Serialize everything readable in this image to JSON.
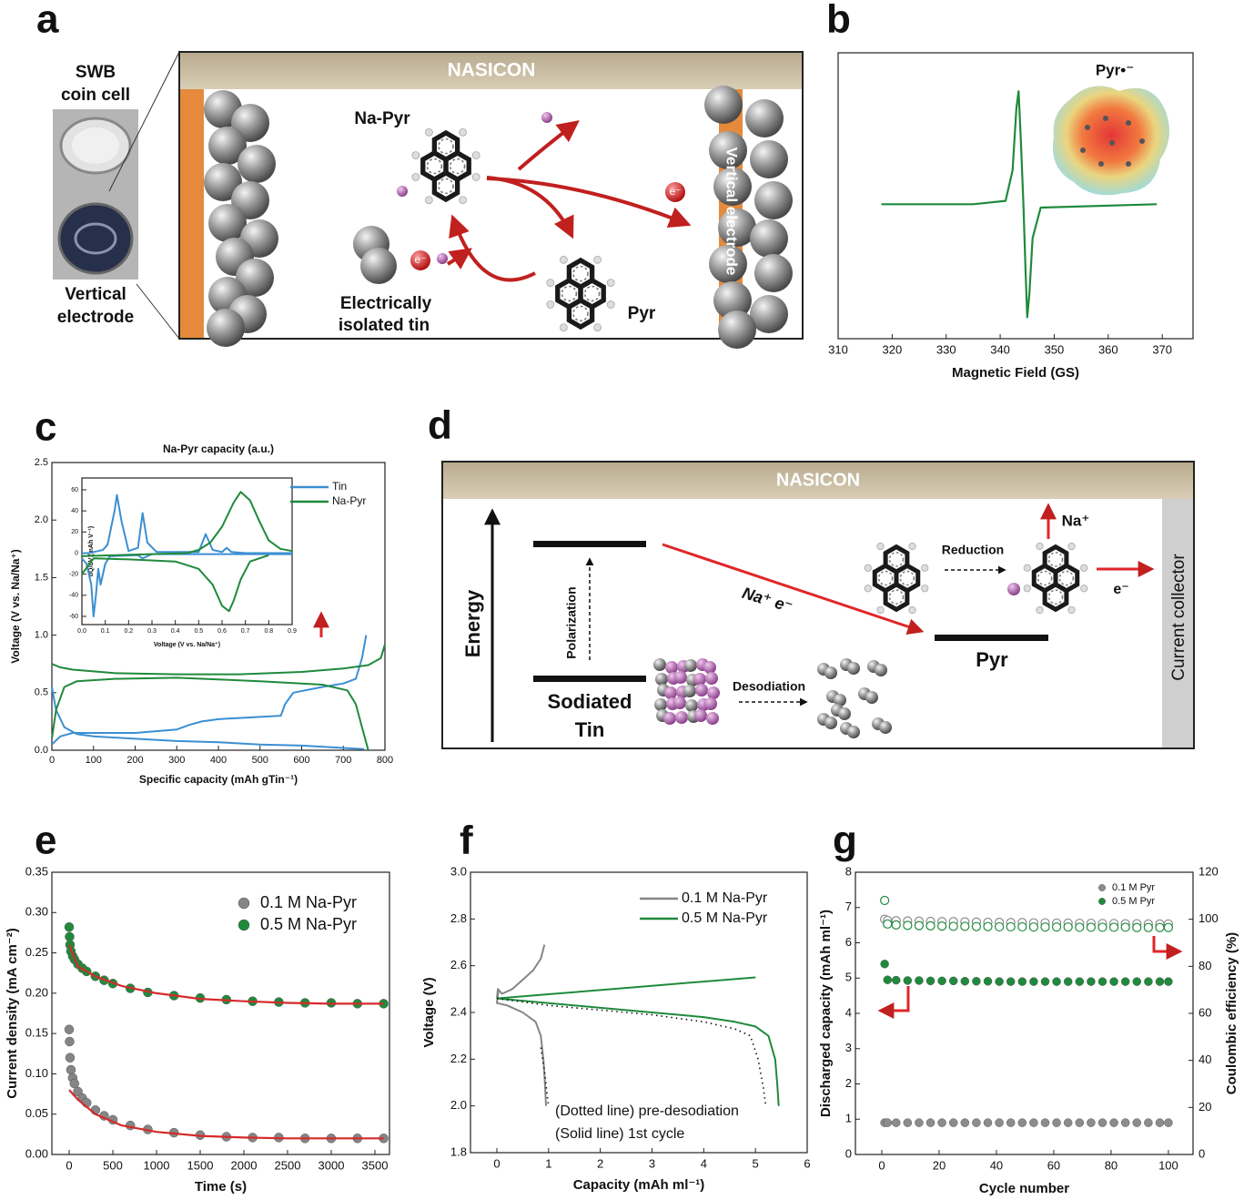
{
  "panel_labels": [
    "a",
    "b",
    "c",
    "d",
    "e",
    "f",
    "g"
  ],
  "diagram_a": {
    "cell_title": [
      "SWB",
      "coin cell"
    ],
    "cell_caption": [
      "Vertical",
      "electrode"
    ],
    "nasicon": "NASICON",
    "na_pyr": "Na-Pyr",
    "tin": [
      "Electrically",
      "isolated tin"
    ],
    "pyr": "Pyr",
    "vertical_electrode": "Vertical electrode",
    "electron": "e⁻"
  },
  "diagram_d": {
    "nasicon": "NASICON",
    "energy": "Energy",
    "polarization": "Polarization",
    "sodiated": [
      "Sodiated",
      "Tin"
    ],
    "desodiation": "Desodiation",
    "transfer": "Na⁺  e⁻",
    "reduction": "Reduction",
    "na_plus": "Na⁺",
    "electron": "e⁻",
    "pyr": "Pyr",
    "current_collector": "Current collector"
  },
  "chart_data": [
    {
      "type": "line",
      "annotation": "Pyr•⁻",
      "x_label": "Magnetic Field (GS)",
      "xlim": [
        310,
        375.7
      ],
      "xticks": [
        310,
        320,
        330,
        340,
        350,
        360,
        370
      ],
      "ylim": [
        -1.19,
        1.34
      ],
      "series": [
        {
          "color": "#1f8a3c",
          "x": [
            318,
            335,
            341,
            342.3,
            343,
            343.4,
            343.8,
            344.3,
            344.7,
            345,
            345.4,
            346,
            347.5,
            369
          ],
          "values": [
            0,
            0,
            0.03,
            0.3,
            0.85,
            1,
            0.6,
            0,
            -0.6,
            -1,
            -0.8,
            -0.3,
            -0.03,
            0
          ]
        }
      ]
    },
    {
      "type": "line",
      "top_label": "Na-Pyr capacity (a.u.)",
      "x_label": "Specific capacity (mAh gTin⁻¹)",
      "y_label": "Voltage (V vs. Na/Na⁺)",
      "xlim": [
        0,
        800
      ],
      "xticks": [
        0,
        100,
        200,
        300,
        400,
        500,
        600,
        700,
        800
      ],
      "ylim": [
        0,
        2.5
      ],
      "yticks": [
        {
          "value": 0,
          "label": "0.0"
        },
        0.5,
        {
          "value": 1,
          "label": "1.0"
        },
        1.5,
        {
          "value": 2,
          "label": "2.0"
        },
        2.5
      ],
      "series": [
        {
          "color": "#3b8fd2",
          "x": [
            0,
            10,
            30,
            60,
            100,
            200,
            300,
            400,
            500,
            600,
            700,
            750,
            null,
            0,
            20,
            50,
            100,
            200,
            300,
            330,
            360,
            400,
            450,
            550,
            560,
            580,
            650,
            700,
            730,
            745,
            750,
            755
          ],
          "values": [
            0.55,
            0.35,
            0.2,
            0.14,
            0.12,
            0.1,
            0.08,
            0.07,
            0.05,
            0.04,
            0.02,
            0.01,
            null,
            0.05,
            0.12,
            0.15,
            0.15,
            0.15,
            0.18,
            0.22,
            0.25,
            0.27,
            0.28,
            0.3,
            0.4,
            0.5,
            0.55,
            0.58,
            0.62,
            0.8,
            0.9,
            1.0
          ]
        },
        {
          "color": "#1f8a3c",
          "x": [
            0,
            20,
            50,
            150,
            300,
            450,
            600,
            700,
            760,
            790,
            800,
            null,
            0,
            10,
            30,
            60,
            150,
            300,
            500,
            650,
            710,
            730,
            745,
            760
          ],
          "values": [
            0.75,
            0.72,
            0.7,
            0.67,
            0.66,
            0.66,
            0.68,
            0.71,
            0.74,
            0.8,
            0.92,
            null,
            0.1,
            0.35,
            0.55,
            0.6,
            0.62,
            0.63,
            0.6,
            0.57,
            0.52,
            0.4,
            0.2,
            0.0
          ]
        }
      ]
    },
    {
      "type": "line",
      "x_label": "Voltage (V vs. Na/Na⁺)",
      "y_label": "dQ/dV (mAh V⁻¹)",
      "legend": "right",
      "xlim": [
        0,
        0.9
      ],
      "xticks": [
        {
          "value": 0,
          "label": "0.0"
        },
        0.1,
        0.2,
        0.3,
        0.4,
        0.5,
        0.6,
        0.7,
        0.8,
        0.9
      ],
      "ylim": [
        -67.8,
        71.2
      ],
      "yticks": [
        -60,
        -40,
        -20,
        0,
        20,
        40,
        60
      ],
      "series": [
        {
          "name": "Tin",
          "color": "#3b8fd2",
          "x": [
            0,
            0.03,
            0.05,
            0.07,
            0.09,
            0.11,
            0.14,
            0.15,
            0.17,
            0.2,
            0.24,
            0.26,
            0.28,
            0.32,
            0.5,
            0.53,
            0.56,
            0.6,
            0.62,
            0.64,
            0.7,
            0.9,
            null,
            0.9,
            0.3,
            0.28,
            0.26,
            0.24,
            0.12,
            0.1,
            0.08,
            0.07,
            0.06,
            0.05,
            0.04,
            0.02,
            0.0
          ],
          "values": [
            0,
            0,
            1,
            2,
            3,
            8,
            40,
            55,
            30,
            2,
            5,
            38,
            10,
            1,
            1,
            18,
            3,
            1,
            5,
            1,
            0,
            0,
            null,
            -1,
            -1,
            -3,
            -5,
            -2,
            -3,
            -10,
            -30,
            -15,
            -40,
            -60,
            -30,
            -10,
            -5
          ]
        },
        {
          "name": "Na-Pyr",
          "color": "#1f8a3c",
          "x": [
            0.0,
            0.45,
            0.5,
            0.55,
            0.6,
            0.65,
            0.68,
            0.72,
            0.76,
            0.8,
            0.85,
            0.9,
            null,
            0.8,
            0.72,
            0.68,
            0.65,
            0.63,
            0.6,
            0.56,
            0.5,
            0.4,
            0.2,
            0.05,
            0.0
          ],
          "values": [
            -3,
            0,
            3,
            10,
            25,
            48,
            58,
            50,
            30,
            12,
            4,
            2,
            null,
            -2,
            -8,
            -25,
            -45,
            -55,
            -50,
            -30,
            -15,
            -8,
            -6,
            -5,
            -20
          ]
        }
      ]
    },
    {
      "type": "scatter",
      "x_label": "Time (s)",
      "y_label": "Current density (mA cm⁻²)",
      "legend": "upper right",
      "xlim": [
        -198,
        3667
      ],
      "xticks": [
        0,
        500,
        1000,
        1500,
        2000,
        2500,
        3000,
        3500
      ],
      "ylim": [
        0,
        0.35
      ],
      "yticks": [
        {
          "value": 0,
          "label": "0.00"
        },
        0.05,
        {
          "value": 0.1,
          "label": "0.10"
        },
        0.15,
        {
          "value": 0.2,
          "label": "0.20"
        },
        0.25,
        {
          "value": 0.3,
          "label": "0.30"
        },
        0.35
      ],
      "series": [
        {
          "name": "0.1 M Na-Pyr",
          "color": "#858585",
          "x": [
            0,
            5,
            10,
            20,
            40,
            60,
            100,
            150,
            200,
            300,
            400,
            500,
            700,
            900,
            1200,
            1500,
            1800,
            2100,
            2400,
            2700,
            3000,
            3300,
            3600
          ],
          "values": [
            0.155,
            0.14,
            0.12,
            0.105,
            0.095,
            0.088,
            0.078,
            0.07,
            0.064,
            0.055,
            0.048,
            0.043,
            0.036,
            0.031,
            0.027,
            0.024,
            0.022,
            0.021,
            0.021,
            0.02,
            0.02,
            0.02,
            0.02
          ]
        },
        {
          "name": "0.5 M Na-Pyr",
          "color": "#1f8a3c",
          "x": [
            0,
            5,
            10,
            20,
            40,
            60,
            100,
            150,
            200,
            300,
            400,
            500,
            700,
            900,
            1200,
            1500,
            1800,
            2100,
            2400,
            2700,
            3000,
            3300,
            3600
          ],
          "values": [
            0.282,
            0.27,
            0.26,
            0.252,
            0.246,
            0.242,
            0.236,
            0.231,
            0.227,
            0.221,
            0.216,
            0.212,
            0.206,
            0.201,
            0.197,
            0.194,
            0.192,
            0.19,
            0.189,
            0.188,
            0.188,
            0.187,
            0.187
          ]
        }
      ],
      "fits": [
        {
          "color": "#d62a2a",
          "x": [
            0,
            100,
            300,
            600,
            1000,
            1500,
            2000,
            2500,
            3000,
            3600
          ],
          "values": [
            0.08,
            0.068,
            0.05,
            0.036,
            0.028,
            0.023,
            0.021,
            0.02,
            0.02,
            0.02
          ]
        },
        {
          "color": "#d62a2a",
          "x": [
            0,
            100,
            300,
            600,
            1000,
            1500,
            2000,
            2500,
            3000,
            3600
          ],
          "values": [
            0.26,
            0.233,
            0.221,
            0.209,
            0.2,
            0.193,
            0.19,
            0.188,
            0.187,
            0.187
          ]
        }
      ]
    },
    {
      "type": "line",
      "x_label": "Capacity (mAh ml⁻¹)",
      "y_label": "Voltage (V)",
      "legend": "upper right",
      "annotations": [
        "(Dotted line) pre-desodiation",
        "(Solid line) 1st cycle"
      ],
      "xlim": [
        -0.51,
        6
      ],
      "xticks": [
        0,
        1,
        2,
        3,
        4,
        5,
        6
      ],
      "ylim": [
        1.8,
        3.0
      ],
      "yticks": [
        1.8,
        {
          "value": 2,
          "label": "2.0"
        },
        2.2,
        2.4,
        2.6,
        2.8,
        {
          "value": 3,
          "label": "3.0"
        }
      ],
      "series": [
        {
          "name": "0.1 M Na-Pyr",
          "color": "#858585",
          "x": [
            0,
            0.02,
            0.1,
            0.3,
            0.5,
            0.7,
            0.85,
            0.92,
            null,
            0,
            0.03,
            0,
            0.2,
            0.5,
            0.75,
            0.85,
            0.9,
            0.93,
            0.95
          ],
          "values": [
            2.46,
            2.5,
            2.48,
            2.5,
            2.54,
            2.58,
            2.63,
            2.69,
            null,
            2.46,
            2.49,
            2.44,
            2.43,
            2.4,
            2.36,
            2.3,
            2.2,
            2.1,
            2.0
          ]
        },
        {
          "name": "0.5 M Na-Pyr",
          "color": "#1f8a3c",
          "x": [
            0,
            1,
            2,
            3,
            4,
            5,
            null,
            0,
            1,
            2,
            3,
            4,
            4.6,
            5,
            5.25,
            5.38,
            5.42,
            5.45
          ],
          "values": [
            2.46,
            2.478,
            2.496,
            2.514,
            2.532,
            2.55,
            null,
            2.46,
            2.44,
            2.42,
            2.4,
            2.38,
            2.36,
            2.34,
            2.3,
            2.2,
            2.1,
            2.0
          ]
        },
        {
          "color": "#111111",
          "dash": "dotted",
          "x": [
            0,
            1,
            2,
            3,
            4,
            4.6,
            4.9,
            5.05,
            5.15,
            5.2
          ],
          "values": [
            2.46,
            2.43,
            2.41,
            2.39,
            2.36,
            2.33,
            2.3,
            2.2,
            2.08,
            2.0
          ]
        },
        {
          "color": "#111111",
          "dash": "dotted",
          "x": [
            0.85,
            0.92,
            0.97,
            1.0
          ],
          "values": [
            2.25,
            2.15,
            2.05,
            2.0
          ]
        }
      ]
    },
    {
      "type": "scatter",
      "x_label": "Cycle number",
      "y_label": "Discharged capacity (mAh ml⁻¹)",
      "y2_label": "Coulombic efficiency (%)",
      "legend": "upper right",
      "xlim": [
        -9.2,
        108.6
      ],
      "xticks": [
        0,
        20,
        40,
        60,
        80,
        100
      ],
      "ylim": [
        0,
        8
      ],
      "yticks": [
        0,
        1,
        2,
        3,
        4,
        5,
        6,
        7,
        8
      ],
      "y2lim": [
        0,
        120
      ],
      "y2ticks": [
        0,
        20,
        40,
        60,
        80,
        100,
        120
      ],
      "series": [
        {
          "name": "0.1 M Pyr",
          "color": "#8c8c8c",
          "marker": "filled",
          "x": [
            1,
            2,
            5,
            9,
            13,
            17,
            21,
            25,
            29,
            33,
            37,
            41,
            45,
            49,
            53,
            57,
            61,
            65,
            69,
            73,
            77,
            81,
            85,
            89,
            93,
            97,
            100
          ],
          "values": [
            0.9,
            0.9,
            0.9,
            0.9,
            0.9,
            0.9,
            0.9,
            0.9,
            0.9,
            0.9,
            0.9,
            0.9,
            0.9,
            0.9,
            0.9,
            0.9,
            0.9,
            0.9,
            0.9,
            0.9,
            0.9,
            0.9,
            0.9,
            0.9,
            0.9,
            0.9,
            0.9
          ]
        },
        {
          "name": "0.5 M Pyr",
          "color": "#1f8a3c",
          "marker": "filled",
          "x": [
            1,
            2,
            5,
            9,
            13,
            17,
            21,
            25,
            29,
            33,
            37,
            41,
            45,
            49,
            53,
            57,
            61,
            65,
            69,
            73,
            77,
            81,
            85,
            89,
            93,
            97,
            100
          ],
          "values": [
            5.4,
            4.95,
            4.94,
            4.93,
            4.93,
            4.92,
            4.92,
            4.92,
            4.91,
            4.91,
            4.91,
            4.9,
            4.9,
            4.9,
            4.9,
            4.9,
            4.9,
            4.9,
            4.9,
            4.9,
            4.9,
            4.9,
            4.9,
            4.9,
            4.9,
            4.9,
            4.9
          ]
        },
        {
          "color": "#8c8c8c",
          "marker": "open",
          "axis": "y2",
          "x": [
            1,
            2,
            5,
            9,
            13,
            17,
            21,
            25,
            29,
            33,
            37,
            41,
            45,
            49,
            53,
            57,
            61,
            65,
            69,
            73,
            77,
            81,
            85,
            89,
            93,
            97,
            100
          ],
          "values": [
            100,
            99.5,
            99.4,
            99.3,
            99.2,
            99.1,
            99,
            99,
            98.9,
            98.8,
            98.7,
            98.7,
            98.6,
            98.6,
            98.5,
            98.5,
            98.4,
            98.4,
            98.3,
            98.3,
            98.2,
            98.2,
            98.1,
            98.1,
            98,
            98,
            98
          ]
        },
        {
          "color": "#1f8a3c",
          "marker": "open",
          "axis": "y2",
          "x": [
            1,
            2,
            5,
            9,
            13,
            17,
            21,
            25,
            29,
            33,
            37,
            41,
            45,
            49,
            53,
            57,
            61,
            65,
            69,
            73,
            77,
            81,
            85,
            89,
            93,
            97,
            100
          ],
          "values": [
            108,
            98,
            97.6,
            97.4,
            97.3,
            97.2,
            97.1,
            97,
            97,
            96.9,
            96.9,
            96.8,
            96.8,
            96.8,
            96.7,
            96.7,
            96.7,
            96.7,
            96.6,
            96.6,
            96.6,
            96.6,
            96.6,
            96.5,
            96.5,
            96.5,
            96.5
          ]
        }
      ]
    }
  ]
}
